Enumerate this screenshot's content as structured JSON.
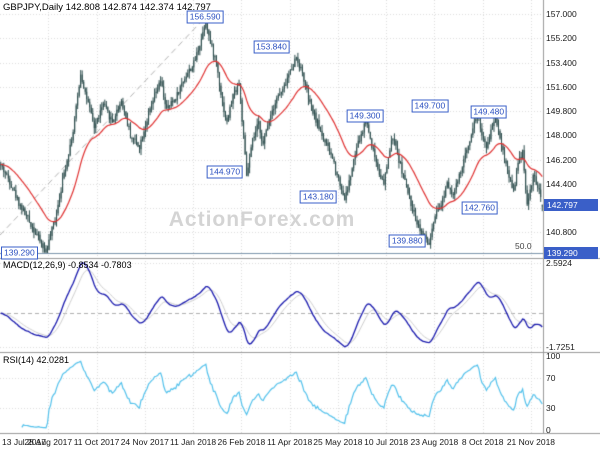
{
  "main": {
    "symbol_title": "GBPJPY,Daily 142.808 142.874 142.374 142.797",
    "watermark": "ActionForex.com",
    "current_price": 142.797,
    "current_price_tag": "142.797",
    "support_line": {
      "price": 139.29,
      "label": "139.290",
      "fib_label": "50.0"
    }
  },
  "indicators": {
    "macd": {
      "label": "MACD(12,26,9) -0.8534 -0.7803",
      "fast": 12,
      "slow": 26,
      "signal": 9,
      "current_macd": -0.8534,
      "current_signal": -0.7803,
      "axis_labels": [
        {
          "text": "2.5924",
          "value": 2.5924
        },
        {
          "text": "-1.7251",
          "value": -1.7251
        }
      ],
      "scale_max": 2.5924,
      "scale_min": -1.7251
    },
    "rsi": {
      "label": "RSI(14) 42.0281",
      "period": 14,
      "current": 42.0281,
      "axis_labels": [
        {
          "text": "100",
          "value": 100
        },
        {
          "text": "70",
          "value": 70
        },
        {
          "text": "30",
          "value": 30
        },
        {
          "text": "0",
          "value": 0
        }
      ],
      "levels": [
        70,
        30
      ]
    }
  },
  "chart_data": {
    "type": "candlestick",
    "symbol": "GBPJPY",
    "timeframe": "Daily",
    "title": "GBPJPY,Daily",
    "last_bar": {
      "open": 142.808,
      "high": 142.874,
      "low": 142.374,
      "close": 142.797
    },
    "bars": 360,
    "y_axis": {
      "range": [
        138.9,
        158.05
      ],
      "ticks": [
        {
          "text": "157.000",
          "value": 157.0
        },
        {
          "text": "155.200",
          "value": 155.2
        },
        {
          "text": "153.400",
          "value": 153.4
        },
        {
          "text": "151.600",
          "value": 151.6
        },
        {
          "text": "149.800",
          "value": 149.8
        },
        {
          "text": "148.000",
          "value": 148.0
        },
        {
          "text": "146.200",
          "value": 146.2
        },
        {
          "text": "144.400",
          "value": 144.4
        },
        {
          "text": "142.600",
          "value": 142.6
        },
        {
          "text": "140.800",
          "value": 140.8
        }
      ]
    },
    "x_axis": {
      "ticks": [
        {
          "text": "13 Jul 2017",
          "bar": 0
        },
        {
          "text": "28 Aug 2017",
          "bar": 32
        },
        {
          "text": "11 Oct 2017",
          "bar": 64
        },
        {
          "text": "24 Nov 2017",
          "bar": 96
        },
        {
          "text": "11 Jan 2018",
          "bar": 128
        },
        {
          "text": "26 Feb 2018",
          "bar": 160
        },
        {
          "text": "11 Apr 2018",
          "bar": 192
        },
        {
          "text": "25 May 2018",
          "bar": 224
        },
        {
          "text": "10 Jul 2018",
          "bar": 256
        },
        {
          "text": "23 Aug 2018",
          "bar": 288
        },
        {
          "text": "8 Oct 2018",
          "bar": 320
        },
        {
          "text": "21 Nov 2018",
          "bar": 352
        }
      ]
    },
    "price_anchors": [
      [
        0,
        145.8
      ],
      [
        6,
        144.6
      ],
      [
        12,
        143.0
      ],
      [
        18,
        141.8
      ],
      [
        24,
        140.6
      ],
      [
        30,
        139.29
      ],
      [
        36,
        141.8
      ],
      [
        42,
        145.2
      ],
      [
        48,
        148.3
      ],
      [
        53,
        152.6
      ],
      [
        56,
        151.2
      ],
      [
        62,
        148.6
      ],
      [
        68,
        150.3
      ],
      [
        74,
        149.0
      ],
      [
        80,
        150.6
      ],
      [
        86,
        148.0
      ],
      [
        92,
        147.2
      ],
      [
        96,
        148.8
      ],
      [
        102,
        150.9
      ],
      [
        106,
        152.0
      ],
      [
        110,
        149.9
      ],
      [
        116,
        150.8
      ],
      [
        122,
        152.3
      ],
      [
        128,
        153.3
      ],
      [
        133,
        155.2
      ],
      [
        136,
        156.59
      ],
      [
        139,
        154.8
      ],
      [
        143,
        153.4
      ],
      [
        147,
        150.4
      ],
      [
        150,
        148.9
      ],
      [
        154,
        151.0
      ],
      [
        158,
        151.9
      ],
      [
        161,
        147.8
      ],
      [
        163,
        144.97
      ],
      [
        167,
        147.6
      ],
      [
        171,
        148.9
      ],
      [
        174,
        147.3
      ],
      [
        178,
        149.3
      ],
      [
        183,
        150.8
      ],
      [
        187,
        151.3
      ],
      [
        191,
        152.5
      ],
      [
        196,
        153.84
      ],
      [
        200,
        152.6
      ],
      [
        205,
        150.3
      ],
      [
        210,
        148.9
      ],
      [
        215,
        147.5
      ],
      [
        220,
        146.3
      ],
      [
        224,
        144.8
      ],
      [
        228,
        143.18
      ],
      [
        232,
        145.0
      ],
      [
        236,
        147.1
      ],
      [
        240,
        148.3
      ],
      [
        242,
        149.3
      ],
      [
        246,
        147.3
      ],
      [
        250,
        145.6
      ],
      [
        254,
        144.3
      ],
      [
        257,
        146.4
      ],
      [
        260,
        147.9
      ],
      [
        264,
        146.2
      ],
      [
        268,
        144.6
      ],
      [
        272,
        142.9
      ],
      [
        276,
        141.6
      ],
      [
        280,
        140.6
      ],
      [
        284,
        139.88
      ],
      [
        288,
        141.9
      ],
      [
        292,
        142.8
      ],
      [
        296,
        144.6
      ],
      [
        300,
        143.6
      ],
      [
        304,
        144.9
      ],
      [
        308,
        146.5
      ],
      [
        312,
        148.2
      ],
      [
        316,
        149.7
      ],
      [
        319,
        148.1
      ],
      [
        322,
        146.9
      ],
      [
        325,
        148.4
      ],
      [
        328,
        149.48
      ],
      [
        331,
        147.9
      ],
      [
        334,
        146.3
      ],
      [
        337,
        145.0
      ],
      [
        340,
        143.9
      ],
      [
        343,
        145.9
      ],
      [
        346,
        146.9
      ],
      [
        349,
        142.76
      ],
      [
        353,
        145.0
      ],
      [
        356,
        144.2
      ],
      [
        359,
        142.797
      ]
    ],
    "pins": [
      {
        "bar": 30,
        "low": 139.29
      },
      {
        "bar": 53,
        "high": 152.85
      },
      {
        "bar": 136,
        "high": 156.59
      },
      {
        "bar": 163,
        "low": 144.97
      },
      {
        "bar": 196,
        "high": 153.84
      },
      {
        "bar": 228,
        "low": 143.18
      },
      {
        "bar": 242,
        "high": 149.3
      },
      {
        "bar": 284,
        "low": 139.88
      },
      {
        "bar": 316,
        "high": 149.7
      },
      {
        "bar": 328,
        "high": 149.48
      },
      {
        "bar": 349,
        "low": 142.76
      }
    ],
    "swing_labels": [
      {
        "text": "156.590",
        "bar": 136,
        "price": 156.82
      },
      {
        "text": "153.840",
        "bar": 180,
        "price": 154.55
      },
      {
        "text": "149.300",
        "bar": 242,
        "price": 149.45
      },
      {
        "text": "149.700",
        "bar": 285,
        "price": 150.15
      },
      {
        "text": "149.480",
        "bar": 324,
        "price": 149.72
      },
      {
        "text": "144.970",
        "bar": 149,
        "price": 145.3
      },
      {
        "text": "143.180",
        "bar": 211,
        "price": 143.4
      },
      {
        "text": "142.760",
        "bar": 318,
        "price": 142.64
      },
      {
        "text": "139.880",
        "bar": 270,
        "price": 140.15
      }
    ],
    "trendline": {
      "from": [
        0,
        140.6
      ],
      "to": [
        138,
        157.0
      ],
      "style": "dashed"
    },
    "macd_scale": {
      "min": -2.0,
      "max": 2.85
    },
    "ma": {
      "type": "ema",
      "period": 30
    },
    "noise": {
      "seed": 42,
      "close_amp": 0.5,
      "wick_amp": 0.45
    }
  },
  "colors": {
    "background": "#ffffff",
    "grid": "#dcdcdc",
    "separator": "#9a9a9a",
    "candle": "#2f4f4f",
    "ma": "#e03232",
    "trendline": "#b4b4b4",
    "support_line": "#7d96ad",
    "macd_line": "#1a1aae",
    "macd_signal": "#cfcfcf",
    "macd_zero": "#b0b0b0",
    "rsi_line": "#54c2ec",
    "label_blue": "#3a5fc8",
    "text": "#000000",
    "watermark": "#d4d4d4"
  }
}
